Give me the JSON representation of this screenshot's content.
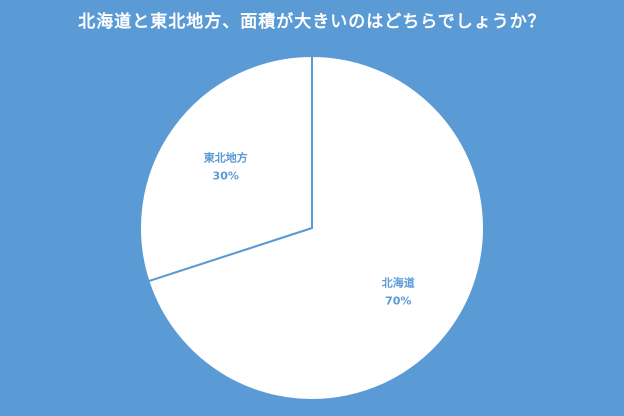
{
  "title": "北海道と東北地方、面積が大きいのはどちらでしょうか？",
  "colors": {
    "background": "#5b9bd5",
    "slice_fill": "#ffffff",
    "slice_stroke": "#5b9bd5",
    "label_text": "#5b9bd5"
  },
  "chart_data": {
    "type": "pie",
    "title": "北海道と東北地方、面積が大きいのはどちらでしょうか？",
    "categories": [
      "北海道",
      "東北地方"
    ],
    "values": [
      70,
      30
    ],
    "labels": [
      {
        "name": "北海道",
        "value_label": "70%"
      },
      {
        "name": "東北地方",
        "value_label": "30%"
      }
    ],
    "start_angle_deg": 0,
    "direction": "clockwise"
  }
}
